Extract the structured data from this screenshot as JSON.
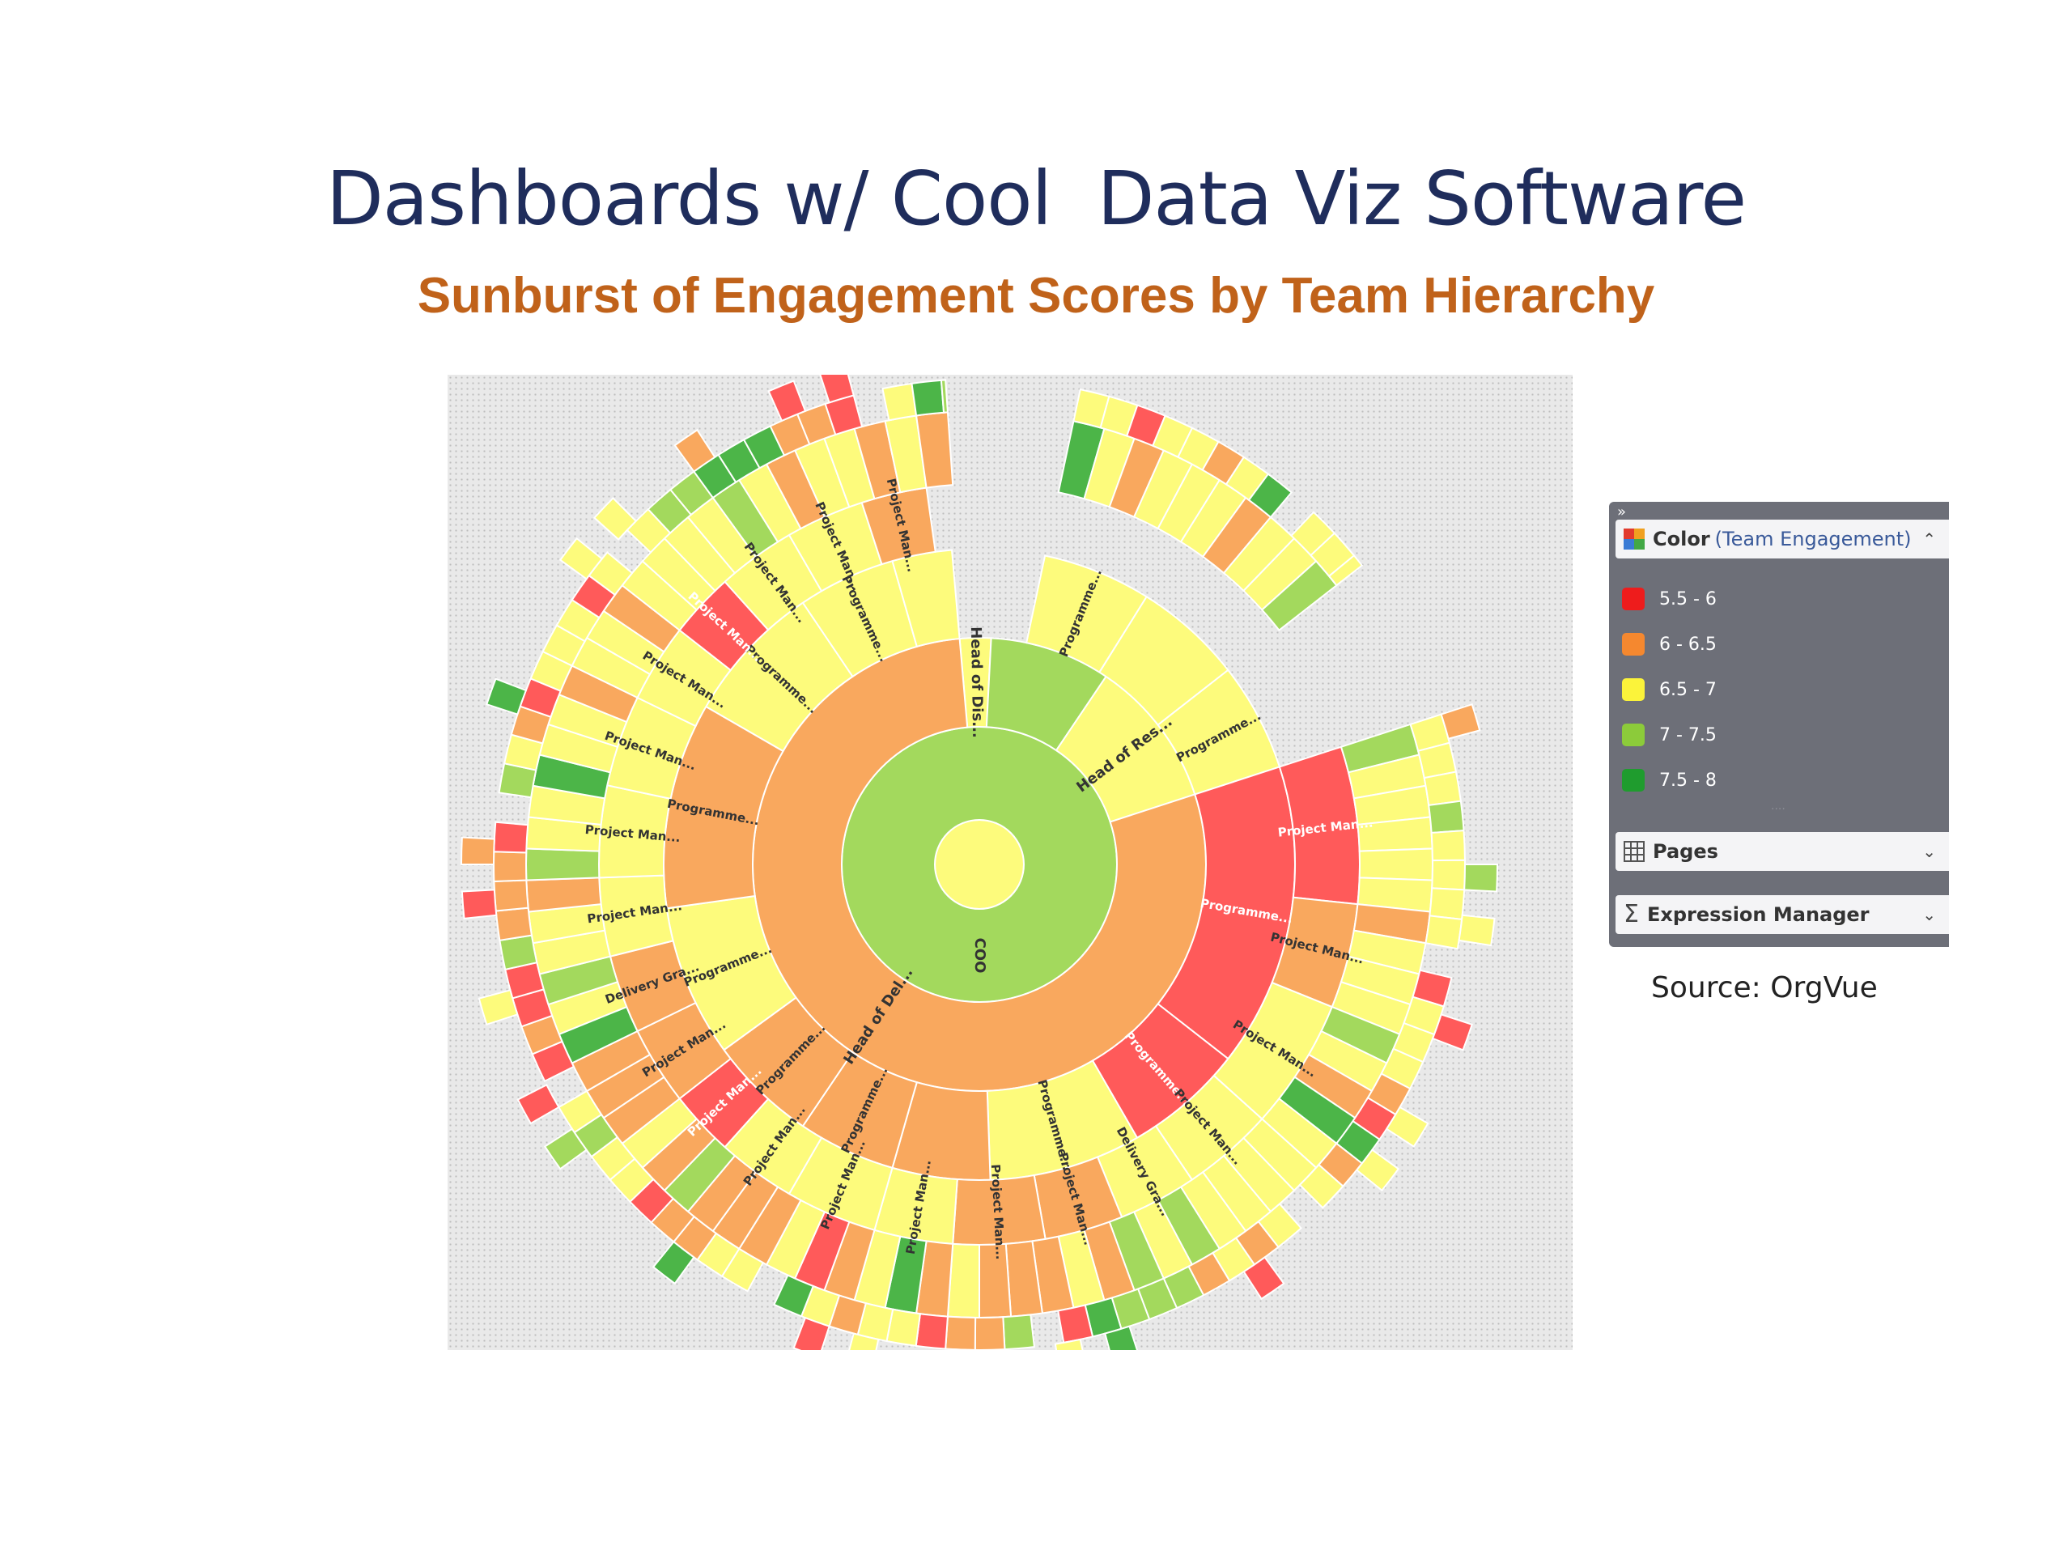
{
  "slide": {
    "title": "Dashboards w/ Cool  Data Viz Software",
    "subtitle": "Sunburst of Engagement Scores by Team Hierarchy",
    "source": "Source: OrgVue"
  },
  "panel": {
    "collapse_glyph": "»",
    "color_header": {
      "label": "Color",
      "sub": "(Team Engagement)",
      "icon": "color-grid-icon",
      "chevron": "chevron-up-icon"
    },
    "pages_header": {
      "label": "Pages",
      "icon": "pages-table-icon",
      "chevron": "chevron-down-icon"
    },
    "expr_header": {
      "label": "Expression Manager",
      "icon": "sigma-icon",
      "chevron": "chevron-down-icon"
    },
    "grip": "····",
    "legend": [
      {
        "label": "5.5 - 6",
        "color": "#ee1c1c"
      },
      {
        "label": "6 - 6.5",
        "color": "#f5882f"
      },
      {
        "label": "6.5 - 7",
        "color": "#fbf33a"
      },
      {
        "label": "7 - 7.5",
        "color": "#8ccb3a"
      },
      {
        "label": "7.5 - 8",
        "color": "#1f9c2e"
      }
    ]
  },
  "chart_data": {
    "type": "sunburst",
    "measure": "Team Engagement",
    "color_scale": {
      "5.5 - 6": "#ff5a5a",
      "6 - 6.5": "#f9a85e",
      "6.5 - 7": "#fdfb7c",
      "7 - 7.5": "#a3d95d",
      "7.5 - 8": "#4cb548"
    },
    "levels": [
      {
        "depth": 1,
        "nodes": [
          {
            "label": "",
            "start": 0,
            "end": 360,
            "band": "6.5 - 7"
          }
        ]
      },
      {
        "depth": 2,
        "nodes": [
          {
            "label": "COO",
            "start": 0,
            "end": 360,
            "band": "7 - 7.5"
          }
        ]
      },
      {
        "depth": 3,
        "nodes": [
          {
            "label": "Head of Dis...",
            "start": 355,
            "end": 3,
            "band": "6.5 - 7"
          },
          {
            "label": "",
            "start": 3,
            "end": 34,
            "band": "7 - 7.5"
          },
          {
            "label": "Head of Res...",
            "start": 34,
            "end": 72,
            "band": "6.5 - 7"
          },
          {
            "label": "Head of Del...",
            "start": 72,
            "end": 355,
            "band": "6 - 6.5"
          }
        ]
      },
      {
        "depth": 4,
        "nodes": [
          {
            "label": "Programme...",
            "start": 12,
            "end": 32,
            "band": "6.5 - 7"
          },
          {
            "label": "",
            "start": 32,
            "end": 52,
            "band": "6.5 - 7"
          },
          {
            "label": "Programme...",
            "start": 52,
            "end": 72,
            "band": "6.5 - 7"
          },
          {
            "label": "Programme...",
            "start": 72,
            "end": 128,
            "band": "5.5 - 6"
          },
          {
            "label": "Programme...",
            "start": 128,
            "end": 150,
            "band": "5.5 - 6"
          },
          {
            "label": "Programme...",
            "start": 150,
            "end": 178,
            "band": "6.5 - 7"
          },
          {
            "label": "",
            "start": 178,
            "end": 196,
            "band": "6 - 6.5"
          },
          {
            "label": "Programme...",
            "start": 196,
            "end": 214,
            "band": "6 - 6.5"
          },
          {
            "label": "Programme...",
            "start": 214,
            "end": 234,
            "band": "6 - 6.5"
          },
          {
            "label": "Programme...",
            "start": 234,
            "end": 262,
            "band": "6.5 - 7"
          },
          {
            "label": "Programme...",
            "start": 262,
            "end": 300,
            "band": "6 - 6.5"
          },
          {
            "label": "Programme...",
            "start": 300,
            "end": 326,
            "band": "6.5 - 7"
          },
          {
            "label": "Programme...",
            "start": 326,
            "end": 344,
            "band": "6.5 - 7"
          },
          {
            "label": "",
            "start": 344,
            "end": 355,
            "band": "6.5 - 7"
          }
        ]
      },
      {
        "depth": 5,
        "nodes": [
          {
            "label": "Project Man...",
            "start": 72,
            "end": 96,
            "band": "5.5 - 6"
          },
          {
            "label": "Project Man...",
            "start": 96,
            "end": 112,
            "band": "6 - 6.5"
          },
          {
            "label": "Project Man...",
            "start": 112,
            "end": 132,
            "band": "6.5 - 7"
          },
          {
            "label": "Project Man...",
            "start": 132,
            "end": 146,
            "band": "6.5 - 7"
          },
          {
            "label": "Delivery Gra...",
            "start": 146,
            "end": 158,
            "band": "6.5 - 7"
          },
          {
            "label": "Project Man...",
            "start": 158,
            "end": 170,
            "band": "6 - 6.5"
          },
          {
            "label": "Project Man...",
            "start": 170,
            "end": 184,
            "band": "6 - 6.5"
          },
          {
            "label": "Project Man...",
            "start": 184,
            "end": 196,
            "band": "6.5 - 7"
          },
          {
            "label": "Project Man...",
            "start": 196,
            "end": 210,
            "band": "6.5 - 7"
          },
          {
            "label": "Project Man...",
            "start": 210,
            "end": 222,
            "band": "6.5 - 7"
          },
          {
            "label": "Project Man...",
            "start": 222,
            "end": 232,
            "band": "5.5 - 6"
          },
          {
            "label": "Project Man...",
            "start": 232,
            "end": 244,
            "band": "6 - 6.5"
          },
          {
            "label": "Delivery Gra...",
            "start": 244,
            "end": 256,
            "band": "6 - 6.5"
          },
          {
            "label": "Project Man...",
            "start": 256,
            "end": 268,
            "band": "6.5 - 7"
          },
          {
            "label": "Project Man...",
            "start": 268,
            "end": 282,
            "band": "6.5 - 7"
          },
          {
            "label": "Project Man...",
            "start": 282,
            "end": 296,
            "band": "6.5 - 7"
          },
          {
            "label": "Project Man...",
            "start": 296,
            "end": 308,
            "band": "6.5 - 7"
          },
          {
            "label": "Project Man...",
            "start": 308,
            "end": 318,
            "band": "5.5 - 6"
          },
          {
            "label": "Project Man...",
            "start": 318,
            "end": 330,
            "band": "6.5 - 7"
          },
          {
            "label": "Project Man...",
            "start": 330,
            "end": 342,
            "band": "6.5 - 7"
          },
          {
            "label": "Project Man...",
            "start": 342,
            "end": 352,
            "band": "6 - 6.5"
          }
        ]
      }
    ]
  }
}
